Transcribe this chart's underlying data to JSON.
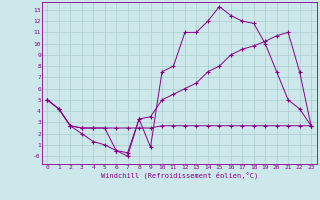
{
  "bg_color": "#cce8ea",
  "grid_color": "#aacccc",
  "line_color": "#880088",
  "xlabel": "Windchill (Refroidissement éolien,°C)",
  "xlim": [
    -0.5,
    23.5
  ],
  "ylim": [
    -0.7,
    13.7
  ],
  "xticks": [
    0,
    1,
    2,
    3,
    4,
    5,
    6,
    7,
    8,
    9,
    10,
    11,
    12,
    13,
    14,
    15,
    16,
    17,
    18,
    19,
    20,
    21,
    22,
    23
  ],
  "yticks": [
    0,
    1,
    2,
    3,
    4,
    5,
    6,
    7,
    8,
    9,
    10,
    11,
    12,
    13
  ],
  "ytick_labels": [
    "-0",
    "1",
    "2",
    "3",
    "4",
    "5",
    "6",
    "7",
    "8",
    "9",
    "10",
    "11",
    "12",
    "13"
  ],
  "line1_x": [
    0,
    1,
    2,
    3,
    4,
    5,
    6,
    7,
    8,
    9,
    10,
    11,
    12,
    13,
    14,
    15,
    16,
    17,
    18,
    19,
    20,
    21,
    22,
    23
  ],
  "line1_y": [
    5.0,
    4.2,
    2.7,
    2.5,
    2.5,
    2.5,
    0.5,
    0.0,
    3.3,
    0.8,
    7.5,
    8.0,
    11.0,
    11.0,
    12.0,
    13.3,
    12.5,
    12.0,
    11.8,
    10.0,
    7.5,
    5.0,
    4.2,
    2.7
  ],
  "line2_x": [
    0,
    1,
    2,
    3,
    4,
    5,
    6,
    7,
    8,
    9,
    10,
    11,
    12,
    13,
    14,
    15,
    16,
    17,
    18,
    19,
    20,
    21,
    22,
    23
  ],
  "line2_y": [
    5.0,
    4.2,
    2.7,
    2.5,
    2.5,
    2.5,
    2.5,
    2.5,
    2.5,
    2.5,
    2.7,
    2.7,
    2.7,
    2.7,
    2.7,
    2.7,
    2.7,
    2.7,
    2.7,
    2.7,
    2.7,
    2.7,
    2.7,
    2.7
  ],
  "line3_x": [
    0,
    1,
    2,
    3,
    4,
    5,
    6,
    7,
    8,
    9,
    10,
    11,
    12,
    13,
    14,
    15,
    16,
    17,
    18,
    19,
    20,
    21,
    22,
    23
  ],
  "line3_y": [
    5.0,
    4.2,
    2.7,
    2.0,
    1.3,
    1.0,
    0.5,
    0.3,
    3.3,
    3.5,
    5.0,
    5.5,
    6.0,
    6.5,
    7.5,
    8.0,
    9.0,
    9.5,
    9.8,
    10.2,
    10.7,
    11.0,
    7.5,
    2.7
  ]
}
